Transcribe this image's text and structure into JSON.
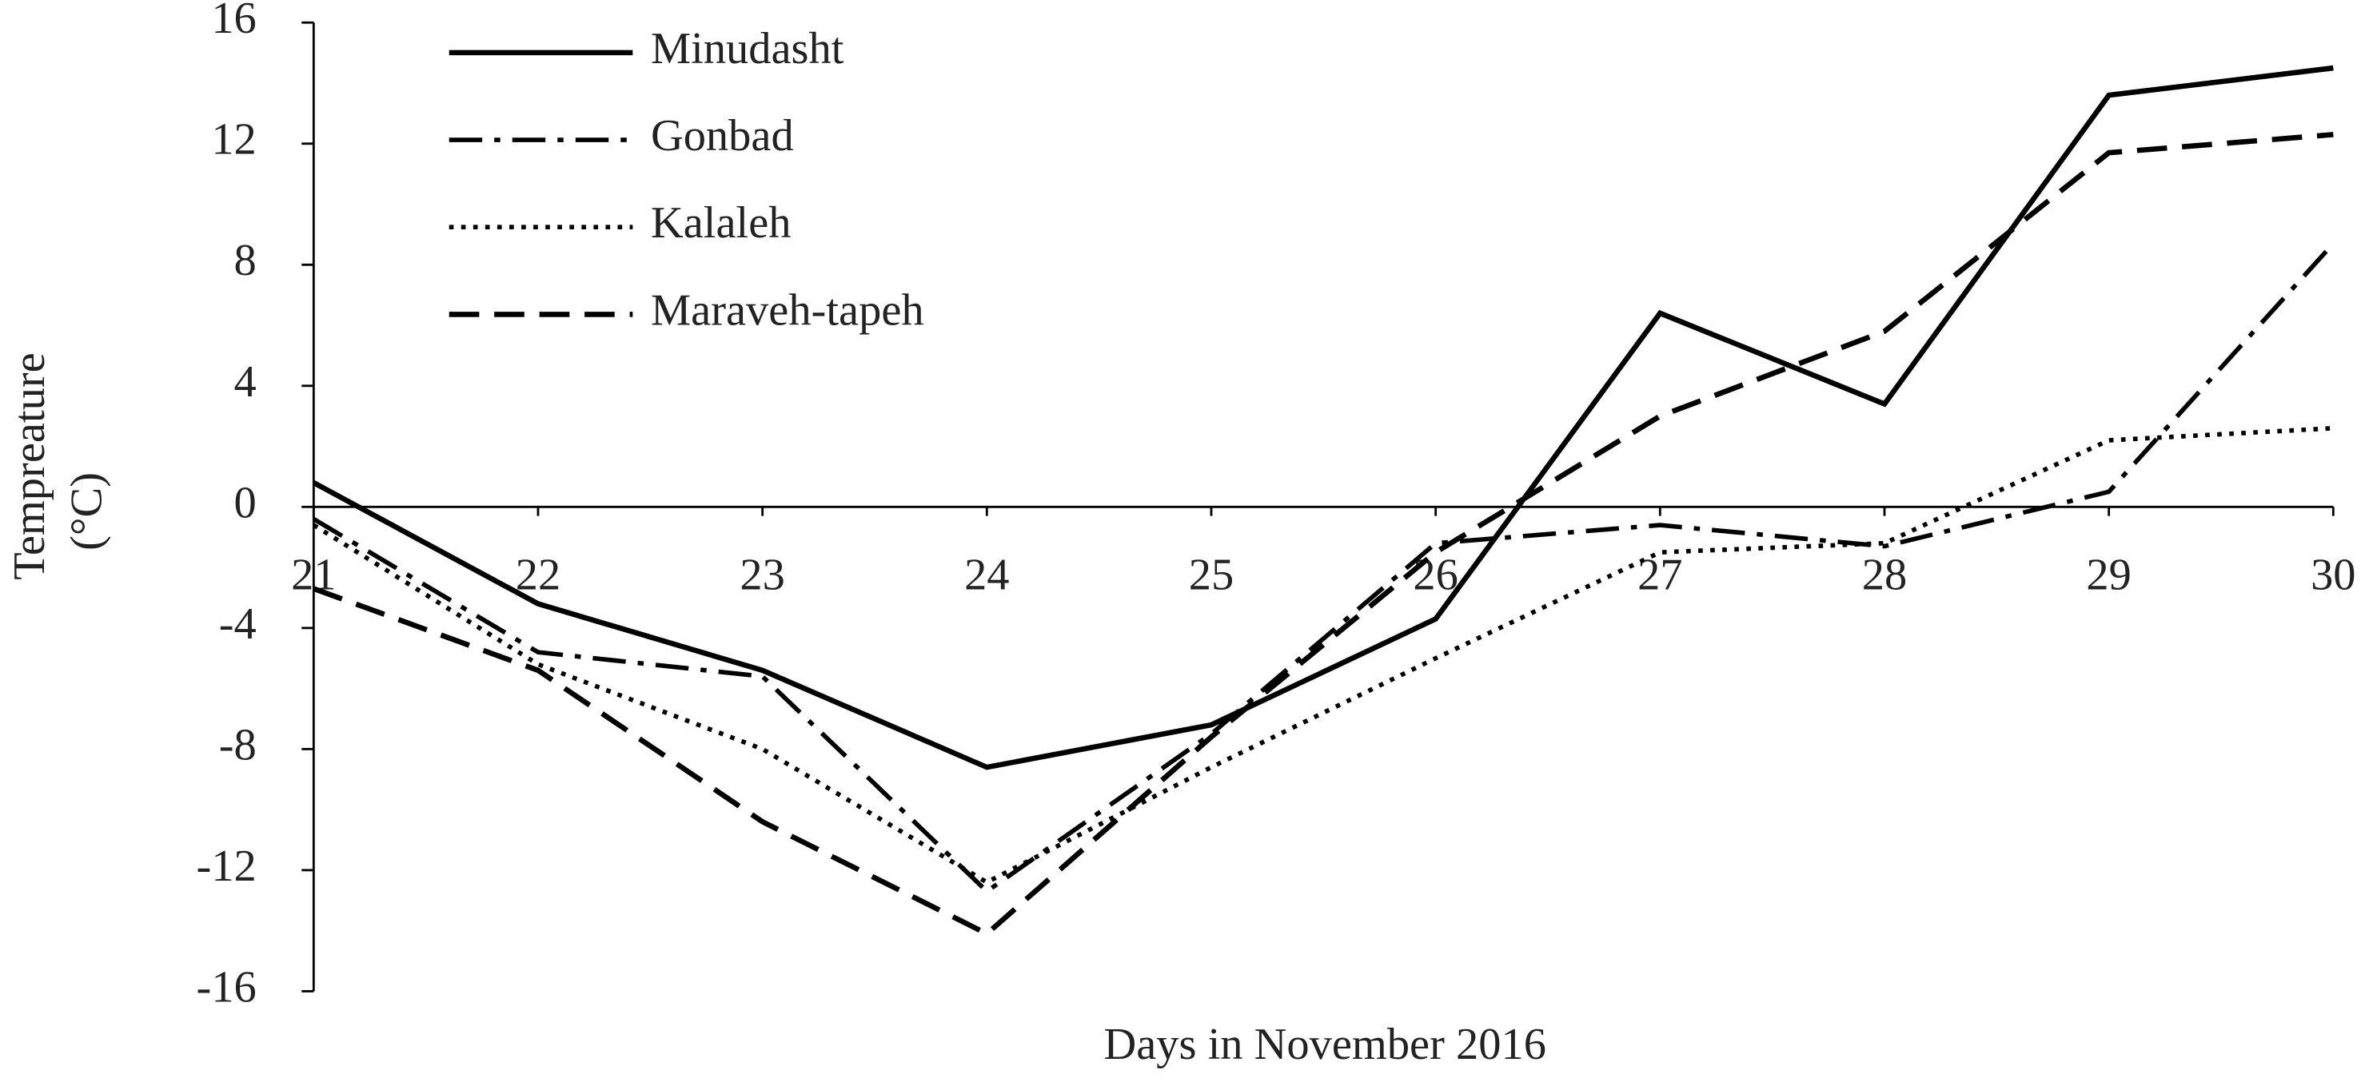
{
  "chart_data": {
    "type": "line",
    "xlabel": "Days in November 2016",
    "ylabel": [
      "Tempreature",
      "(°C)"
    ],
    "x": [
      21,
      22,
      23,
      24,
      25,
      26,
      27,
      28,
      29,
      30
    ],
    "xlim": [
      21,
      30
    ],
    "xticks": [
      21,
      22,
      23,
      24,
      25,
      26,
      27,
      28,
      29,
      30
    ],
    "ylim": [
      -16,
      16
    ],
    "yticks": [
      -16,
      -12,
      -8,
      -4,
      0,
      4,
      8,
      12,
      16
    ],
    "legend": "upper left",
    "series": [
      {
        "name": "Minudasht",
        "color": "#000000",
        "line_style": "solid",
        "values": [
          0.8,
          -3.2,
          -5.4,
          -8.6,
          -7.2,
          -3.7,
          6.4,
          3.4,
          13.6,
          14.5
        ]
      },
      {
        "name": "Gonbad",
        "color": "#000000",
        "line_style": "dashdot",
        "values": [
          -0.4,
          -4.8,
          -5.6,
          -12.7,
          -7.5,
          -1.2,
          -0.6,
          -1.3,
          0.5,
          8.7
        ]
      },
      {
        "name": "Kalaleh",
        "color": "#000000",
        "line_style": "dotted",
        "values": [
          -0.6,
          -5.2,
          -8.0,
          -12.4,
          -8.6,
          -5.0,
          -1.5,
          -1.2,
          2.2,
          2.6
        ]
      },
      {
        "name": "Maraveh-tapeh",
        "color": "#000000",
        "line_style": "dashed",
        "values": [
          -2.7,
          -5.4,
          -10.4,
          -14.1,
          -7.6,
          -1.5,
          3.0,
          5.8,
          11.7,
          12.3
        ]
      }
    ]
  }
}
